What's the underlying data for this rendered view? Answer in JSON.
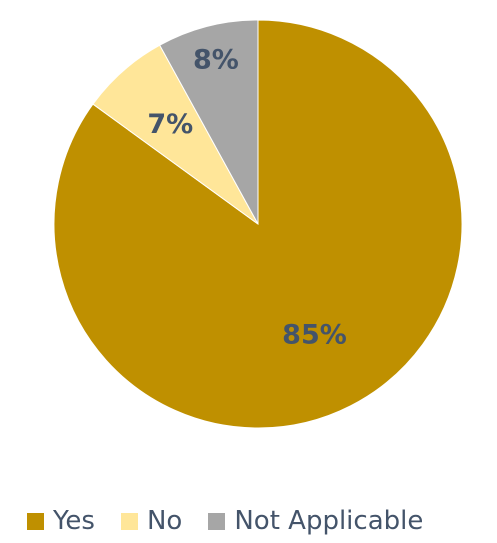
{
  "chart_data": {
    "type": "pie",
    "categories": [
      "Yes",
      "No",
      "Not Applicable"
    ],
    "values": [
      85,
      7,
      8
    ],
    "value_labels": [
      "85%",
      "7%",
      "8%"
    ],
    "colors": [
      "#bf9000",
      "#ffe699",
      "#a6a6a6"
    ],
    "title": "",
    "legend_position": "bottom",
    "start_angle": "12 o'clock",
    "direction": "clockwise"
  }
}
